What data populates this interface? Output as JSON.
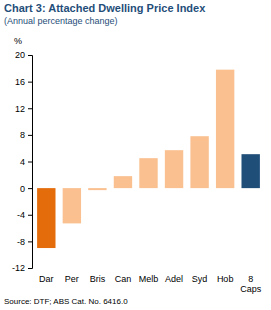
{
  "chart_data": {
    "type": "bar",
    "title": "Chart 3: Attached Dwelling Price Index",
    "subtitle": "(Annual percentage change)",
    "y_label": "%",
    "source": "Source: DTF; ABS Cat. No. 6416.0",
    "categories": [
      "Dar",
      "Per",
      "Bris",
      "Can",
      "Melb",
      "Adel",
      "Syd",
      "Hob",
      "8 Caps"
    ],
    "values": [
      -9,
      -5.3,
      -0.3,
      1.8,
      4.5,
      5.7,
      7.8,
      17.8,
      5.1
    ],
    "colors": [
      "#e46c0a",
      "#fac090",
      "#fac090",
      "#fac090",
      "#fac090",
      "#fac090",
      "#fac090",
      "#fac090",
      "#1f4e79"
    ],
    "ylim": [
      -12,
      20
    ],
    "yticks": [
      -12,
      -8,
      -4,
      0,
      4,
      8,
      12,
      16,
      20
    ],
    "grid": false
  }
}
